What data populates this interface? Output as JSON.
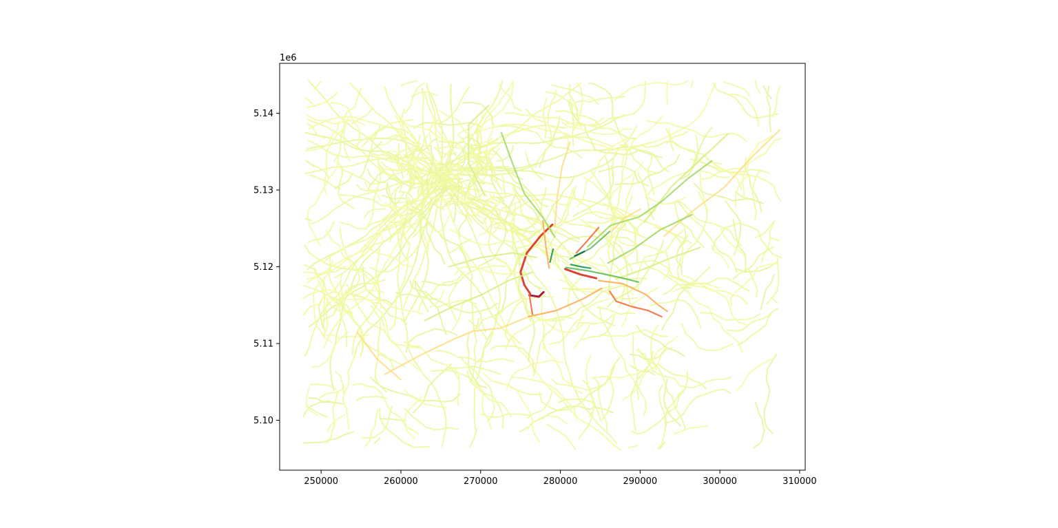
{
  "chart_data": {
    "type": "line",
    "title": "",
    "xlabel": "",
    "ylabel": "",
    "y_offset_label": "1e6",
    "xlim": [
      244800,
      310700
    ],
    "ylim": [
      5093500,
      5146500
    ],
    "xticks": [
      250000,
      260000,
      270000,
      280000,
      290000,
      300000,
      310000
    ],
    "xtick_labels": [
      "250000",
      "260000",
      "270000",
      "280000",
      "290000",
      "300000",
      "310000"
    ],
    "yticks": [
      5100000,
      5110000,
      5120000,
      5130000,
      5140000
    ],
    "ytick_labels": [
      "5.10",
      "5.11",
      "5.12",
      "5.13",
      "5.14"
    ],
    "grid": false,
    "colormap": [
      "#a50026",
      "#d73027",
      "#f46d43",
      "#fdae61",
      "#fee08b",
      "#ffffbf",
      "#d9ef8b",
      "#a6d96a",
      "#66bd63",
      "#1a9850",
      "#006837"
    ],
    "series": [
      {
        "color": "#a50026",
        "values": [
          [
            276100,
            5116300
          ],
          [
            277300,
            5116100
          ],
          [
            277900,
            5116700
          ]
        ]
      },
      {
        "color": "#d73027",
        "values": [
          [
            276200,
            5116500
          ],
          [
            275500,
            5117600
          ],
          [
            275000,
            5119300
          ],
          [
            275800,
            5121800
          ],
          [
            277500,
            5124000
          ],
          [
            279000,
            5125500
          ]
        ]
      },
      {
        "color": "#d73027",
        "values": [
          [
            280600,
            5119700
          ],
          [
            282500,
            5119000
          ],
          [
            284500,
            5118500
          ]
        ]
      },
      {
        "color": "#f46d43",
        "values": [
          [
            276100,
            5116400
          ],
          [
            276300,
            5115100
          ],
          [
            276500,
            5113800
          ]
        ]
      },
      {
        "color": "#f46d43",
        "values": [
          [
            286200,
            5116800
          ],
          [
            287000,
            5115500
          ],
          [
            289000,
            5114800
          ],
          [
            291000,
            5114300
          ],
          [
            292700,
            5113500
          ]
        ]
      },
      {
        "color": "#f46d43",
        "values": [
          [
            282000,
            5121800
          ],
          [
            283300,
            5123300
          ],
          [
            284800,
            5125100
          ]
        ]
      },
      {
        "color": "#fdae61",
        "values": [
          [
            276000,
            5113500
          ],
          [
            279500,
            5114300
          ],
          [
            283000,
            5115900
          ],
          [
            285200,
            5117200
          ]
        ]
      },
      {
        "color": "#fdae61",
        "values": [
          [
            278600,
            5119800
          ],
          [
            278200,
            5122500
          ],
          [
            277800,
            5126000
          ]
        ]
      },
      {
        "color": "#fdae61",
        "values": [
          [
            284800,
            5118200
          ],
          [
            287800,
            5117800
          ],
          [
            290700,
            5116400
          ],
          [
            292300,
            5115000
          ],
          [
            293400,
            5114200
          ]
        ]
      },
      {
        "color": "#fee08b",
        "values": [
          [
            258000,
            5106000
          ],
          [
            262500,
            5108500
          ],
          [
            266500,
            5110500
          ],
          [
            269000,
            5111600
          ],
          [
            272500,
            5112000
          ],
          [
            275800,
            5113400
          ]
        ]
      },
      {
        "color": "#fee08b",
        "values": [
          [
            254500,
            5111500
          ],
          [
            257000,
            5108000
          ],
          [
            260000,
            5105300
          ]
        ]
      },
      {
        "color": "#fee08b",
        "values": [
          [
            279300,
            5125200
          ],
          [
            279600,
            5129000
          ],
          [
            280200,
            5133000
          ],
          [
            281200,
            5136200
          ]
        ]
      },
      {
        "color": "#fee08b",
        "values": [
          [
            293000,
            5124000
          ],
          [
            296500,
            5127200
          ],
          [
            300500,
            5130300
          ],
          [
            304200,
            5134500
          ],
          [
            307500,
            5137800
          ]
        ]
      },
      {
        "color": "#fee08b",
        "values": [
          [
            286500,
            5124700
          ],
          [
            288000,
            5126300
          ],
          [
            290000,
            5127500
          ]
        ]
      },
      {
        "color": "#d9ef8b",
        "values": [
          [
            263000,
            5113000
          ],
          [
            266500,
            5114800
          ],
          [
            270000,
            5116300
          ],
          [
            273500,
            5118200
          ],
          [
            276500,
            5119300
          ]
        ]
      },
      {
        "color": "#d9ef8b",
        "values": [
          [
            266000,
            5120000
          ],
          [
            270000,
            5121200
          ],
          [
            274000,
            5121800
          ],
          [
            277000,
            5121200
          ]
        ]
      },
      {
        "color": "#d9ef8b",
        "values": [
          [
            270500,
            5129300
          ],
          [
            268500,
            5133500
          ],
          [
            268500,
            5138500
          ],
          [
            271000,
            5141000
          ]
        ]
      },
      {
        "color": "#d9ef8b",
        "values": [
          [
            290500,
            5125800
          ],
          [
            294000,
            5130500
          ],
          [
            297500,
            5133900
          ],
          [
            301000,
            5137300
          ]
        ]
      },
      {
        "color": "#d9ef8b",
        "values": [
          [
            287000,
            5118400
          ],
          [
            290500,
            5119700
          ],
          [
            294000,
            5121200
          ],
          [
            297500,
            5122500
          ]
        ]
      },
      {
        "color": "#a6d96a",
        "values": [
          [
            272600,
            5137500
          ],
          [
            273800,
            5134000
          ],
          [
            275500,
            5129500
          ],
          [
            277800,
            5126400
          ],
          [
            279300,
            5123900
          ]
        ]
      },
      {
        "color": "#a6d96a",
        "values": [
          [
            283400,
            5122600
          ],
          [
            286300,
            5125400
          ],
          [
            289900,
            5126500
          ],
          [
            292700,
            5128500
          ],
          [
            296000,
            5131500
          ],
          [
            299000,
            5133800
          ]
        ]
      },
      {
        "color": "#a6d96a",
        "values": [
          [
            286000,
            5120500
          ],
          [
            289300,
            5122400
          ],
          [
            292500,
            5124800
          ],
          [
            296500,
            5126800
          ]
        ]
      },
      {
        "color": "#66bd63",
        "values": [
          [
            280700,
            5119900
          ],
          [
            283300,
            5119500
          ],
          [
            285200,
            5119100
          ],
          [
            287500,
            5118600
          ],
          [
            289800,
            5118000
          ]
        ]
      },
      {
        "color": "#66bd63",
        "values": [
          [
            281200,
            5121000
          ],
          [
            283800,
            5122400
          ],
          [
            286200,
            5124600
          ]
        ]
      },
      {
        "color": "#1a9850",
        "values": [
          [
            281300,
            5120300
          ],
          [
            282600,
            5120000
          ],
          [
            283800,
            5119800
          ]
        ]
      },
      {
        "color": "#1a9850",
        "values": [
          [
            278700,
            5120600
          ],
          [
            279100,
            5122300
          ]
        ]
      },
      {
        "color": "#006837",
        "values": [
          [
            281800,
            5121400
          ],
          [
            283000,
            5122000
          ]
        ]
      }
    ]
  }
}
